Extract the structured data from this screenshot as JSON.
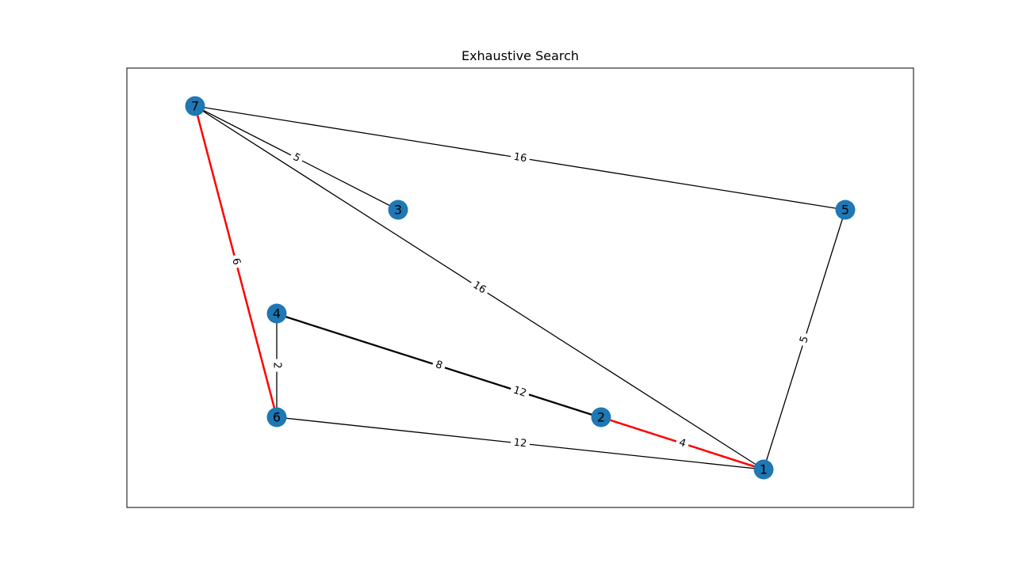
{
  "title": "Exhaustive Search",
  "colors": {
    "node": "#1f77b4",
    "edge": "#000000",
    "highlight": "#ff0000",
    "background": "#ffffff"
  },
  "nodes": [
    {
      "id": "1",
      "label": "1"
    },
    {
      "id": "2",
      "label": "2"
    },
    {
      "id": "3",
      "label": "3"
    },
    {
      "id": "4",
      "label": "4"
    },
    {
      "id": "5",
      "label": "5"
    },
    {
      "id": "6",
      "label": "6"
    },
    {
      "id": "7",
      "label": "7"
    }
  ],
  "edges": [
    {
      "source": "7",
      "target": "5",
      "weight": "16",
      "highlighted": false
    },
    {
      "source": "7",
      "target": "3",
      "weight": "5",
      "highlighted": false
    },
    {
      "source": "7",
      "target": "1",
      "weight": "16",
      "highlighted": false
    },
    {
      "source": "7",
      "target": "6",
      "weight": "6",
      "highlighted": true
    },
    {
      "source": "5",
      "target": "1",
      "weight": "5",
      "highlighted": false
    },
    {
      "source": "4",
      "target": "6",
      "weight": "2",
      "highlighted": false
    },
    {
      "source": "4",
      "target": "2",
      "weight": "8",
      "highlighted": false
    },
    {
      "source": "4",
      "target": "2",
      "weight": "12",
      "highlighted": false
    },
    {
      "source": "6",
      "target": "1",
      "weight": "12",
      "highlighted": false
    },
    {
      "source": "2",
      "target": "1",
      "weight": "4",
      "highlighted": true
    }
  ]
}
